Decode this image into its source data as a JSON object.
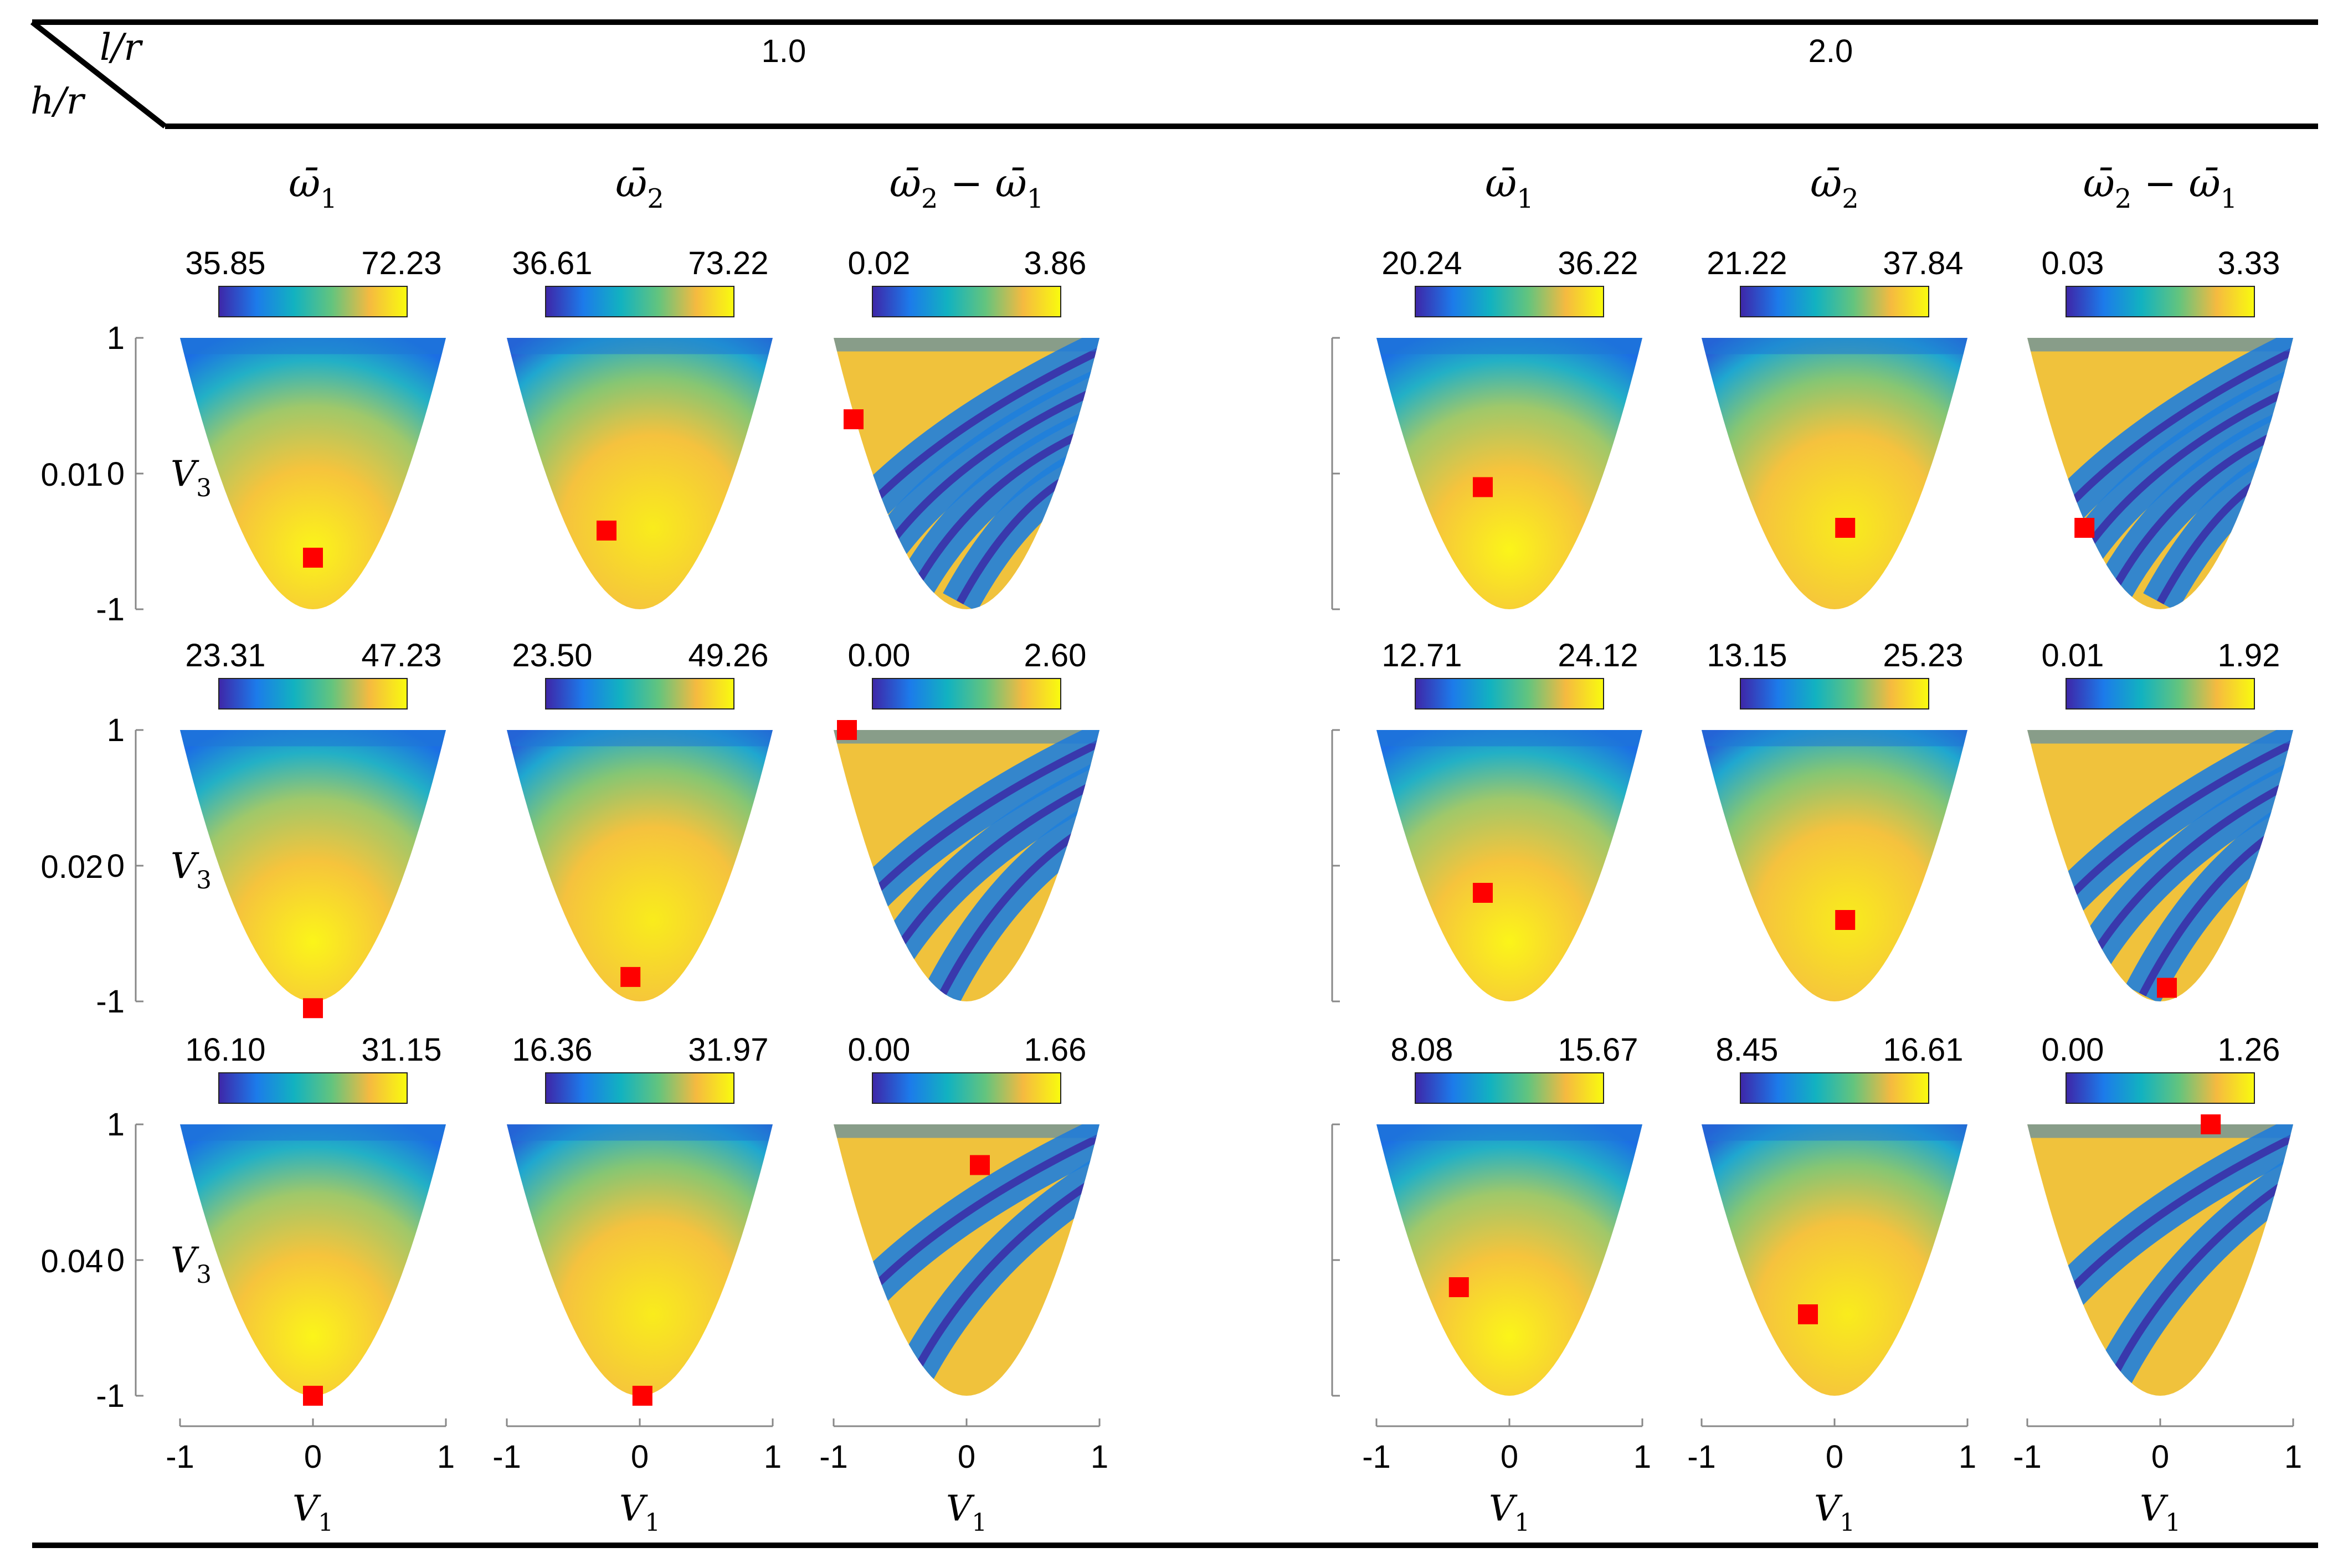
{
  "header": {
    "col_param_label": "l/r",
    "row_param_label": "h/r",
    "groups": [
      "1.0",
      "2.0"
    ]
  },
  "columns": [
    {
      "base": "ω̄",
      "sub": "1"
    },
    {
      "base": "ω̄",
      "sub": "2"
    },
    {
      "base": "ω̄",
      "sub": "2",
      "mid": " − ",
      "base2": "ω̄",
      "sub2": "1"
    },
    {
      "base": "ω̄",
      "sub": "1"
    },
    {
      "base": "ω̄",
      "sub": "2"
    },
    {
      "base": "ω̄",
      "sub": "2",
      "mid": " − ",
      "base2": "ω̄",
      "sub2": "1"
    }
  ],
  "rows": [
    "0.01",
    "0.02",
    "0.04"
  ],
  "axes": {
    "y_label": {
      "base": "V",
      "sub": "3"
    },
    "x_label": {
      "base": "V",
      "sub": "1"
    },
    "y_ticks": [
      "1",
      "0",
      "-1"
    ],
    "x_ticks": [
      "-1",
      "0",
      "1"
    ]
  },
  "colormap": [
    "#3e26a8",
    "#1c7bea",
    "#12b2c0",
    "#63c47e",
    "#f5ba40",
    "#f9fb0e"
  ],
  "marker_color": "#ff0000",
  "chart_data": {
    "type": "heatmap",
    "x_range": [
      -1,
      1
    ],
    "y_range": [
      -1,
      1
    ],
    "panels": [
      {
        "row": 0,
        "col": 0,
        "min": "35.85",
        "max": "72.23",
        "marker": [
          0.0,
          -0.62
        ]
      },
      {
        "row": 0,
        "col": 1,
        "min": "36.61",
        "max": "73.22",
        "marker": [
          -0.25,
          -0.42
        ]
      },
      {
        "row": 0,
        "col": 2,
        "min": "0.02",
        "max": "3.86",
        "marker": [
          -0.85,
          0.4
        ]
      },
      {
        "row": 0,
        "col": 3,
        "min": "20.24",
        "max": "36.22",
        "marker": [
          -0.2,
          -0.1
        ]
      },
      {
        "row": 0,
        "col": 4,
        "min": "21.22",
        "max": "37.84",
        "marker": [
          0.08,
          -0.4
        ]
      },
      {
        "row": 0,
        "col": 5,
        "min": "0.03",
        "max": "3.33",
        "marker": [
          -0.57,
          -0.4
        ]
      },
      {
        "row": 1,
        "col": 0,
        "min": "23.31",
        "max": "47.23",
        "marker": [
          0.0,
          -1.05
        ]
      },
      {
        "row": 1,
        "col": 1,
        "min": "23.50",
        "max": "49.26",
        "marker": [
          -0.07,
          -0.82
        ]
      },
      {
        "row": 1,
        "col": 2,
        "min": "0.00",
        "max": "2.60",
        "marker": [
          -0.9,
          1.0
        ]
      },
      {
        "row": 1,
        "col": 3,
        "min": "12.71",
        "max": "24.12",
        "marker": [
          -0.2,
          -0.2
        ]
      },
      {
        "row": 1,
        "col": 4,
        "min": "13.15",
        "max": "25.23",
        "marker": [
          0.08,
          -0.4
        ]
      },
      {
        "row": 1,
        "col": 5,
        "min": "0.01",
        "max": "1.92",
        "marker": [
          0.05,
          -0.9
        ]
      },
      {
        "row": 2,
        "col": 0,
        "min": "16.10",
        "max": "31.15",
        "marker": [
          0.0,
          -1.0
        ]
      },
      {
        "row": 2,
        "col": 1,
        "min": "16.36",
        "max": "31.97",
        "marker": [
          0.02,
          -1.0
        ]
      },
      {
        "row": 2,
        "col": 2,
        "min": "0.00",
        "max": "1.66",
        "marker": [
          0.1,
          0.7
        ]
      },
      {
        "row": 2,
        "col": 3,
        "min": "8.08",
        "max": "15.67",
        "marker": [
          -0.38,
          -0.2
        ]
      },
      {
        "row": 2,
        "col": 4,
        "min": "8.45",
        "max": "16.61",
        "marker": [
          -0.2,
          -0.4
        ]
      },
      {
        "row": 2,
        "col": 5,
        "min": "0.00",
        "max": "1.26",
        "marker": [
          0.38,
          1.0
        ]
      }
    ]
  }
}
